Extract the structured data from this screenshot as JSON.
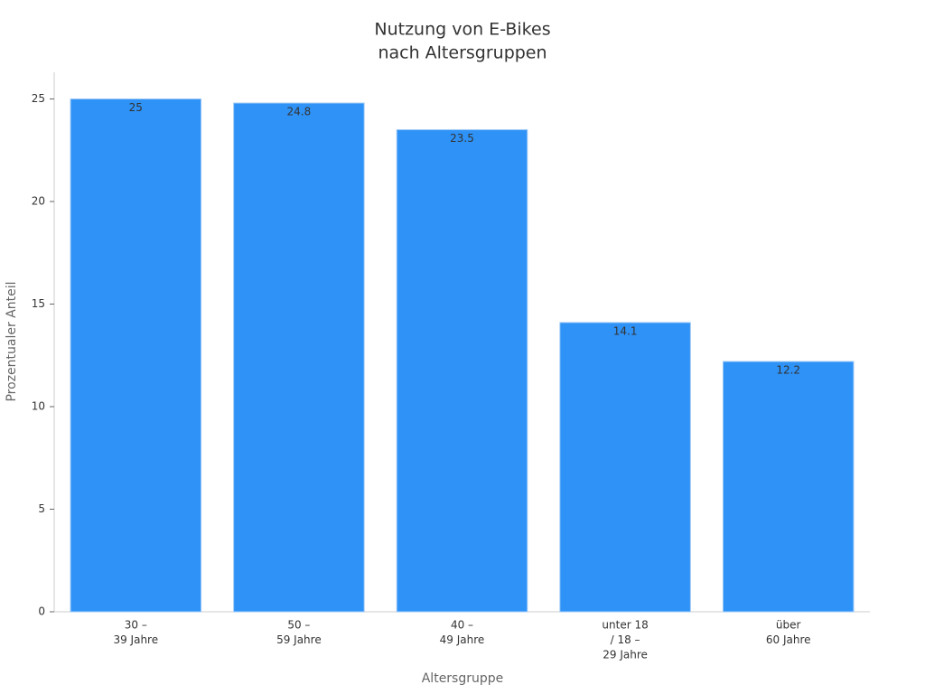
{
  "chart_data": {
    "type": "bar",
    "title": [
      "Nutzung von E-Bikes",
      "nach Altersgruppen"
    ],
    "x_label": "Altersgruppe",
    "y_label": "Prozentualer Anteil",
    "categories": [
      [
        "30 –",
        "39 Jahre"
      ],
      [
        "50 –",
        "59 Jahre"
      ],
      [
        "40 –",
        "49 Jahre"
      ],
      [
        "unter 18",
        "/ 18 –",
        "29 Jahre"
      ],
      [
        "über",
        "60 Jahre"
      ]
    ],
    "values": [
      25,
      24.8,
      23.5,
      14.1,
      12.2
    ],
    "color": "#2e92f7",
    "ylim": [
      0,
      26.3
    ],
    "yticks": [
      0,
      5,
      10,
      15,
      20,
      25
    ],
    "grid": false
  }
}
